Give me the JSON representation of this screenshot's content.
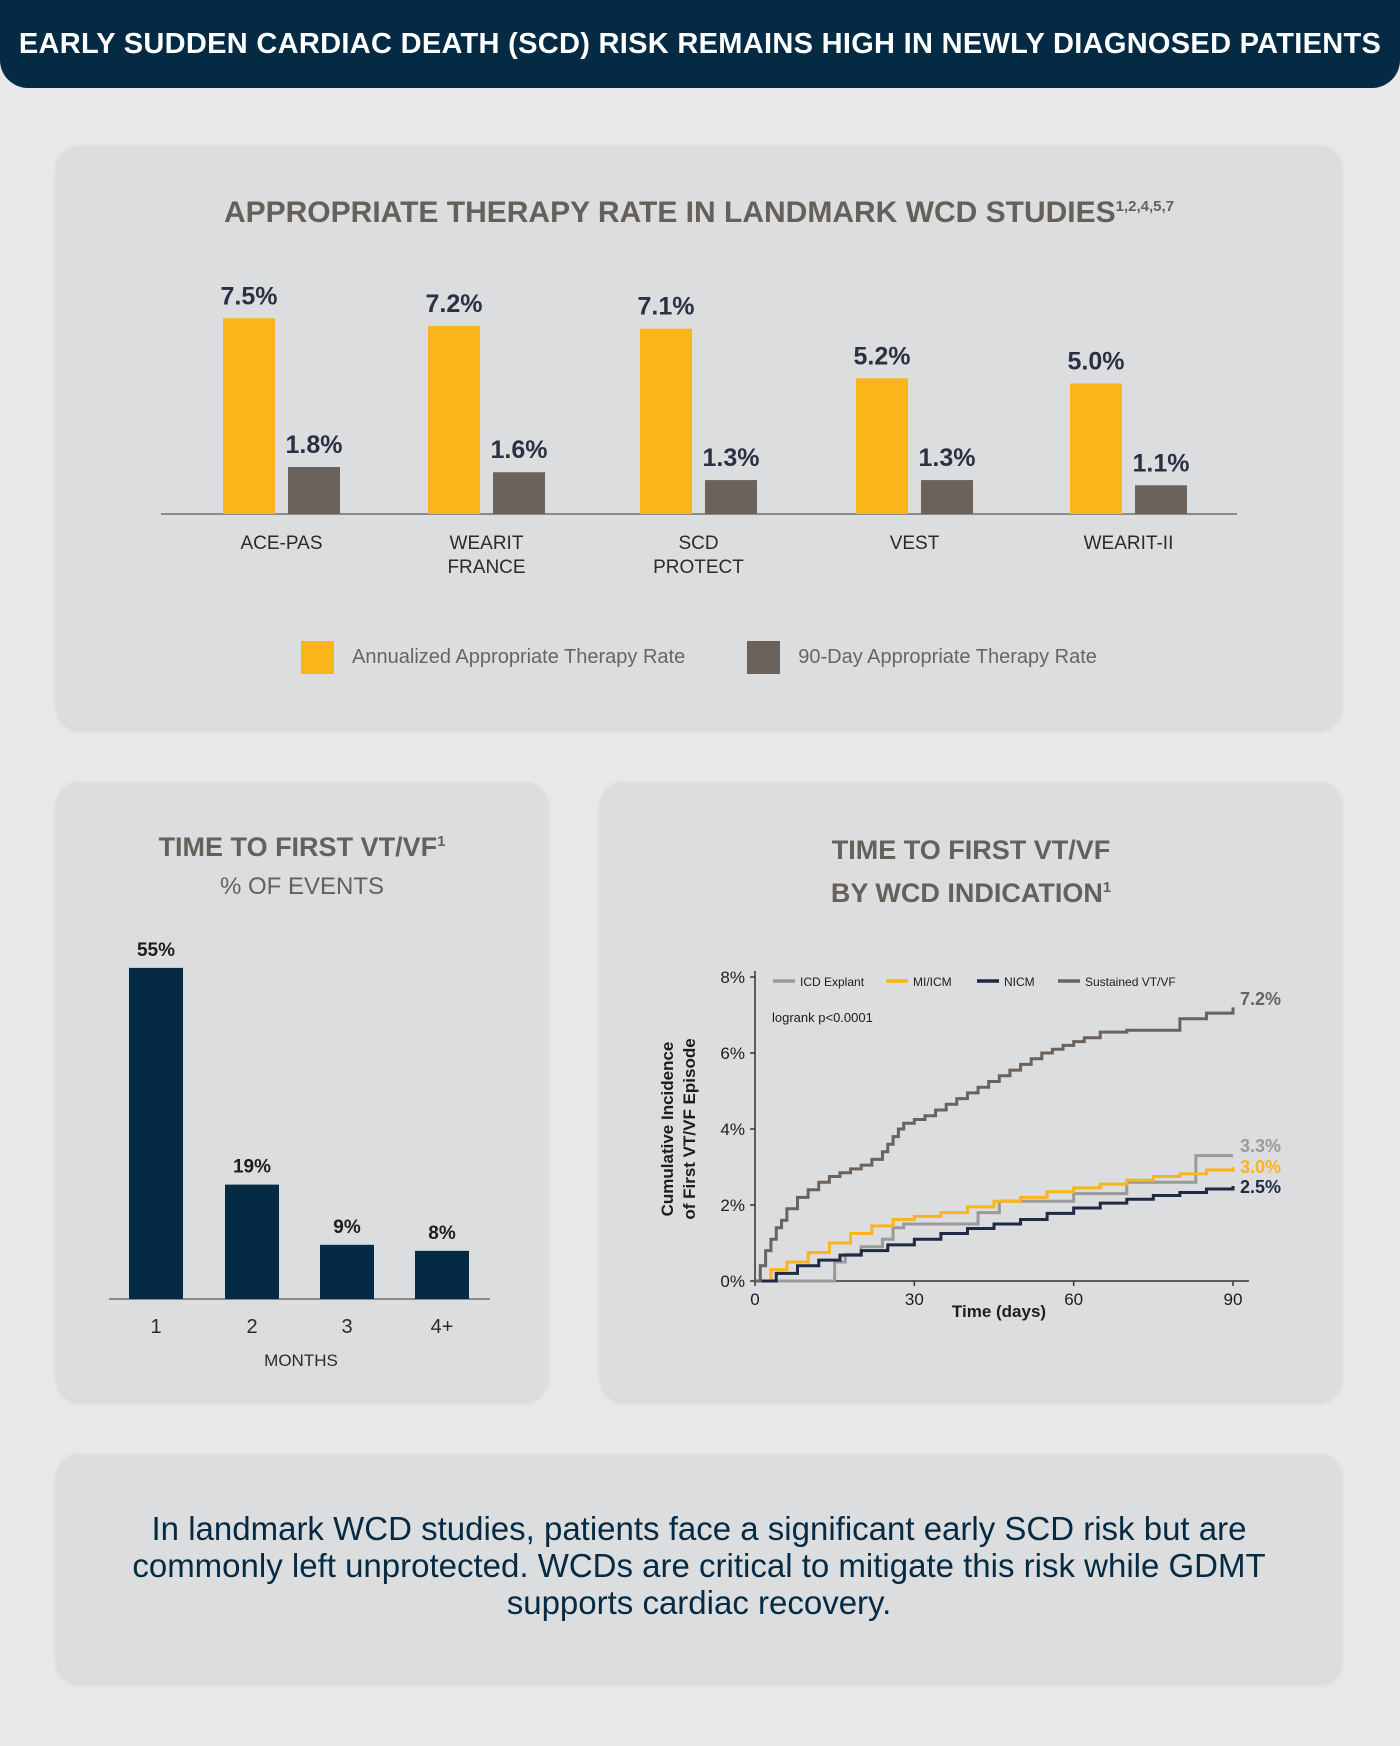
{
  "header": {
    "title": "EARLY SUDDEN CARDIAC DEATH (SCD) RISK REMAINS HIGH IN NEWLY DIAGNOSED PATIENTS"
  },
  "colors": {
    "header_bg": "#052a43",
    "annualized": "#fbb41a",
    "ninety_day": "#6b625c",
    "navy": "#052a43",
    "icd_explant": "#9a9a9a",
    "mi_icm": "#fbb41a",
    "nicm": "#1f2a44",
    "sustained": "#6b625c"
  },
  "top_card": {
    "title": "APPROPRIATE THERAPY RATE IN LANDMARK WCD STUDIES",
    "title_refs": "1,2,4,5,7",
    "legend": [
      {
        "label": "Annualized Appropriate Therapy Rate",
        "color": "#fbb41a"
      },
      {
        "label": "90-Day Appropriate Therapy Rate",
        "color": "#6b625c"
      }
    ]
  },
  "left_card": {
    "title": "TIME TO FIRST VT/VF",
    "title_refs": "1",
    "subtitle": "% OF EVENTS"
  },
  "right_card": {
    "title_line1": "TIME TO FIRST VT/VF",
    "title_line2": "BY WCD INDICATION",
    "title_refs": "1"
  },
  "summary": {
    "text": "In landmark WCD studies, patients face a significant early SCD risk but are commonly left unprotected. WCDs are critical to mitigate this risk while GDMT supports cardiac recovery."
  },
  "chart_data": [
    {
      "type": "bar",
      "categories": [
        "ACE-PAS",
        "WEARIT FRANCE",
        "SCD PROTECT",
        "VEST",
        "WEARIT-II"
      ],
      "category_lines": [
        [
          "ACE-PAS"
        ],
        [
          "WEARIT",
          "FRANCE"
        ],
        [
          "SCD",
          "PROTECT"
        ],
        [
          "VEST"
        ],
        [
          "WEARIT-II"
        ]
      ],
      "series": [
        {
          "name": "Annualized Appropriate Therapy Rate",
          "values": [
            7.5,
            7.2,
            7.1,
            5.2,
            5.0
          ],
          "labels": [
            "7.5%",
            "7.2%",
            "7.1%",
            "5.2%",
            "5.0%"
          ]
        },
        {
          "name": "90-Day Appropriate Therapy Rate",
          "values": [
            1.8,
            1.6,
            1.3,
            1.3,
            1.1
          ],
          "labels": [
            "1.8%",
            "1.6%",
            "1.3%",
            "1.3%",
            "1.1%"
          ]
        }
      ],
      "title": "APPROPRIATE THERAPY RATE IN LANDMARK WCD STUDIES",
      "legend_position": "bottom",
      "grid": false
    },
    {
      "type": "bar",
      "categories": [
        "1",
        "2",
        "3",
        "4+"
      ],
      "values": [
        55,
        19,
        9,
        8
      ],
      "labels": [
        "55%",
        "19%",
        "9%",
        "8%"
      ],
      "xlabel": "MONTHS",
      "title": "TIME TO FIRST VT/VF",
      "subtitle": "% OF EVENTS",
      "grid": false
    },
    {
      "type": "line",
      "title": "TIME TO FIRST VT/VF BY WCD INDICATION",
      "xlabel": "Time (days)",
      "ylabel_lines": [
        "Cumulative Incidence",
        "of First VT/VF Episode"
      ],
      "xlim": [
        0,
        90
      ],
      "ylim": [
        0,
        8
      ],
      "xticks": [
        0,
        30,
        60,
        90
      ],
      "xtick_labels": [
        "0",
        "30",
        "60",
        "90"
      ],
      "yticks": [
        0,
        2,
        4,
        6,
        8
      ],
      "ytick_labels": [
        "0%",
        "2%",
        "4%",
        "6%",
        "8%"
      ],
      "annotation": "logrank p<0.0001",
      "legend_position": "top",
      "series": [
        {
          "name": "ICD Explant",
          "color": "#9a9a9a",
          "end_label": "3.3%",
          "x": [
            0,
            15,
            15,
            17,
            20,
            24,
            26,
            28,
            40,
            42,
            46,
            60,
            70,
            80,
            83,
            83,
            90
          ],
          "y": [
            0,
            0,
            0.5,
            0.7,
            0.9,
            1.1,
            1.4,
            1.5,
            1.5,
            1.8,
            2.1,
            2.3,
            2.6,
            2.6,
            2.6,
            3.3,
            3.3
          ]
        },
        {
          "name": "MI/ICM",
          "color": "#fbb41a",
          "end_label": "3.0%",
          "x": [
            0,
            3,
            6,
            10,
            14,
            18,
            22,
            26,
            30,
            35,
            40,
            45,
            50,
            55,
            60,
            65,
            70,
            75,
            80,
            85,
            90
          ],
          "y": [
            0,
            0.3,
            0.5,
            0.75,
            1.0,
            1.25,
            1.45,
            1.62,
            1.7,
            1.8,
            1.95,
            2.1,
            2.2,
            2.35,
            2.45,
            2.55,
            2.65,
            2.75,
            2.82,
            2.92,
            3.0
          ]
        },
        {
          "name": "NICM",
          "color": "#1f2a44",
          "end_label": "2.5%",
          "x": [
            0,
            4,
            8,
            12,
            16,
            20,
            25,
            30,
            35,
            40,
            45,
            50,
            55,
            60,
            65,
            70,
            75,
            80,
            85,
            90
          ],
          "y": [
            0,
            0.2,
            0.4,
            0.55,
            0.68,
            0.8,
            0.95,
            1.1,
            1.25,
            1.38,
            1.5,
            1.62,
            1.78,
            1.92,
            2.05,
            2.15,
            2.25,
            2.33,
            2.42,
            2.5
          ]
        },
        {
          "name": "Sustained VT/VF",
          "color": "#6b625c",
          "end_label": "7.2%",
          "x": [
            0,
            1,
            2,
            3,
            4,
            5,
            6,
            8,
            10,
            12,
            14,
            16,
            18,
            20,
            22,
            24,
            25,
            26,
            27,
            28,
            30,
            32,
            34,
            36,
            38,
            40,
            42,
            44,
            46,
            48,
            50,
            52,
            54,
            56,
            58,
            60,
            62,
            65,
            70,
            75,
            78,
            80,
            85,
            90
          ],
          "y": [
            0,
            0.4,
            0.8,
            1.1,
            1.4,
            1.6,
            1.9,
            2.2,
            2.4,
            2.6,
            2.75,
            2.85,
            2.95,
            3.05,
            3.2,
            3.4,
            3.6,
            3.8,
            4.0,
            4.15,
            4.25,
            4.35,
            4.5,
            4.65,
            4.8,
            4.95,
            5.1,
            5.25,
            5.4,
            5.55,
            5.7,
            5.85,
            6.0,
            6.1,
            6.2,
            6.3,
            6.4,
            6.55,
            6.6,
            6.6,
            6.6,
            6.9,
            7.05,
            7.2
          ]
        }
      ]
    }
  ]
}
